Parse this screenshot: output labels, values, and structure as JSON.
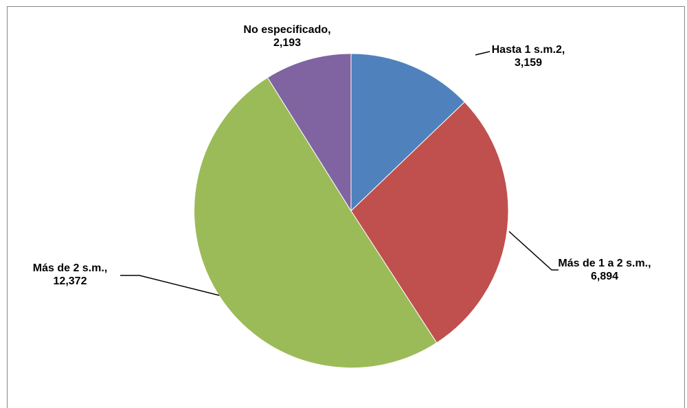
{
  "chart_data": {
    "type": "pie",
    "title": "",
    "slices": [
      {
        "name": "Hasta 1 s.m.2",
        "value": 3159,
        "label_line1": "Hasta 1 s.m.2,",
        "label_line2": "3,159",
        "color": "#4F81BD"
      },
      {
        "name": "Más de 1 a 2 s.m.",
        "value": 6894,
        "label_line1": "Más de 1 a 2 s.m.,",
        "label_line2": "6,894",
        "color": "#C0504D"
      },
      {
        "name": "Más de 2 s.m.",
        "value": 12372,
        "label_line1": "Más de 2 s.m.,",
        "label_line2": "12,372",
        "color": "#9BBB59"
      },
      {
        "name": "No especificado",
        "value": 2193,
        "label_line1": "No especificado,",
        "label_line2": "2,193",
        "color": "#8064A2"
      }
    ],
    "start_angle": "12 o'clock",
    "direction": "clockwise",
    "legend": "none"
  }
}
